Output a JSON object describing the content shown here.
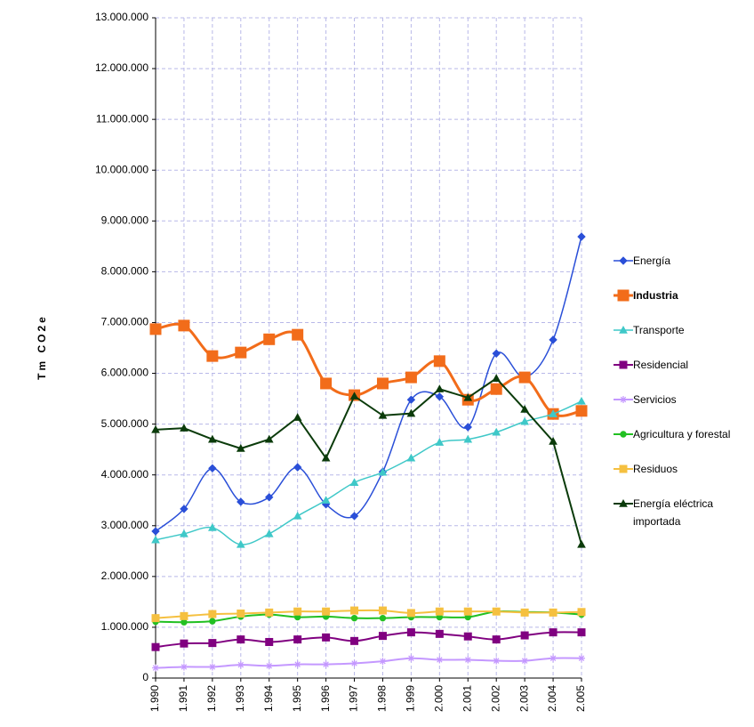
{
  "chart_data": {
    "type": "line",
    "y_label": "Tm CO2e",
    "categories": [
      "1.990",
      "1.991",
      "1.992",
      "1.993",
      "1.994",
      "1.995",
      "1.996",
      "1.997",
      "1.998",
      "1.999",
      "2.000",
      "2.001",
      "2.002",
      "2.003",
      "2.004",
      "2.005"
    ],
    "ylim": [
      0,
      13000000
    ],
    "yticks": [
      0,
      {
        "value": 1000000,
        "label": "1.000.000"
      },
      {
        "value": 2000000,
        "label": "2.000.000"
      },
      {
        "value": 3000000,
        "label": "3.000.000"
      },
      {
        "value": 4000000,
        "label": "4.000.000"
      },
      {
        "value": 5000000,
        "label": "5.000.000"
      },
      {
        "value": 6000000,
        "label": "6.000.000"
      },
      {
        "value": 7000000,
        "label": "7.000.000"
      },
      {
        "value": 8000000,
        "label": "8.000.000"
      },
      {
        "value": 9000000,
        "label": "9.000.000"
      },
      {
        "value": 10000000,
        "label": "10.000.000"
      },
      {
        "value": 11000000,
        "label": "11.000.000"
      },
      {
        "value": 12000000,
        "label": "12.000.000"
      },
      {
        "value": 13000000,
        "label": "13.000.000"
      }
    ],
    "grid": true,
    "legend": "right",
    "series": [
      {
        "name": "Energía",
        "color": "#2a4fd8",
        "marker": "diamond",
        "smooth": true,
        "bold": false,
        "line_width": 1.5,
        "values": [
          2890000,
          3330000,
          4130000,
          3470000,
          3560000,
          4150000,
          3420000,
          3190000,
          4060000,
          5480000,
          5540000,
          4940000,
          6390000,
          5920000,
          6660000,
          8690000
        ]
      },
      {
        "name": "Industria",
        "color": "#f26c1a",
        "marker": "square",
        "smooth": true,
        "bold": true,
        "line_width": 3,
        "values": [
          6870000,
          6940000,
          6340000,
          6410000,
          6670000,
          6760000,
          5800000,
          5570000,
          5800000,
          5920000,
          6240000,
          5480000,
          5690000,
          5920000,
          5200000,
          5260000
        ]
      },
      {
        "name": "Transporte",
        "color": "#3fc8c8",
        "marker": "triangle",
        "smooth": true,
        "bold": false,
        "line_width": 1.5,
        "values": [
          2720000,
          2840000,
          2960000,
          2630000,
          2840000,
          3190000,
          3500000,
          3850000,
          4050000,
          4330000,
          4640000,
          4700000,
          4840000,
          5050000,
          5200000,
          5450000
        ]
      },
      {
        "name": "Residencial",
        "color": "#800080",
        "marker": "square",
        "smooth": true,
        "bold": false,
        "line_width": 2,
        "values": [
          610000,
          680000,
          690000,
          760000,
          710000,
          760000,
          800000,
          730000,
          830000,
          900000,
          870000,
          820000,
          760000,
          840000,
          900000,
          900000
        ]
      },
      {
        "name": "Servicios",
        "color": "#c498ff",
        "marker": "star",
        "smooth": true,
        "bold": false,
        "line_width": 2,
        "values": [
          200000,
          220000,
          220000,
          260000,
          240000,
          270000,
          270000,
          290000,
          330000,
          390000,
          360000,
          360000,
          340000,
          340000,
          390000,
          390000
        ]
      },
      {
        "name": "Agricultura y forestal",
        "color": "#22c022",
        "marker": "circle",
        "smooth": true,
        "bold": false,
        "line_width": 2,
        "values": [
          1110000,
          1100000,
          1120000,
          1210000,
          1250000,
          1200000,
          1210000,
          1180000,
          1180000,
          1200000,
          1200000,
          1200000,
          1310000,
          1300000,
          1290000,
          1250000
        ]
      },
      {
        "name": "Residuos",
        "color": "#f5c040",
        "marker": "square",
        "smooth": true,
        "bold": false,
        "line_width": 2,
        "values": [
          1180000,
          1220000,
          1260000,
          1270000,
          1290000,
          1310000,
          1310000,
          1330000,
          1330000,
          1280000,
          1310000,
          1310000,
          1310000,
          1290000,
          1290000,
          1300000
        ]
      },
      {
        "name": "Energía eléctrica importada",
        "color": "#0b3b0b",
        "marker": "triangle",
        "smooth": false,
        "bold": false,
        "line_width": 2,
        "values": [
          4890000,
          4920000,
          4700000,
          4520000,
          4700000,
          5130000,
          4330000,
          5550000,
          5170000,
          5210000,
          5690000,
          5520000,
          5900000,
          5290000,
          4660000,
          2630000
        ]
      }
    ]
  }
}
